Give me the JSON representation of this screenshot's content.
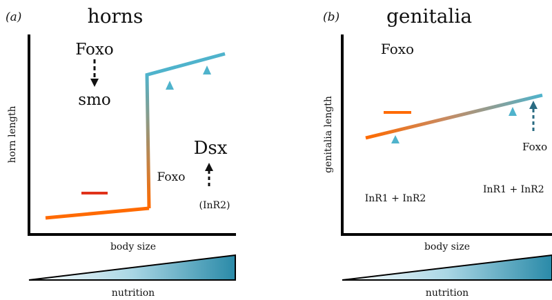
{
  "panel_a": {
    "letter": "(a)",
    "title": "horns",
    "ylabel": "horn length",
    "xlabel": "body size",
    "nutrition_label": "nutrition",
    "labels": {
      "foxo_top": "Foxo",
      "smo": "smo",
      "foxo_bottom": "Foxo",
      "dsx": "Dsx",
      "inr2": "(InR2)"
    }
  },
  "panel_b": {
    "letter": "(b)",
    "title": "genitalia",
    "ylabel": "genitalia length",
    "xlabel": "body size",
    "nutrition_label": "nutrition",
    "labels": {
      "foxo_top": "Foxo",
      "inr_left": "InR1 + InR2",
      "inr_right": "InR1 + InR2",
      "foxo_right": "Foxo"
    }
  },
  "colors": {
    "low_nutrition": "#ff6a00",
    "high_nutrition": "#4fb3cc",
    "dark_teal": "#2a6b82",
    "repression_red": "#e0321a",
    "axis": "#000000",
    "gradient_start": "#ffffff",
    "gradient_end": "#2a8aa8"
  }
}
